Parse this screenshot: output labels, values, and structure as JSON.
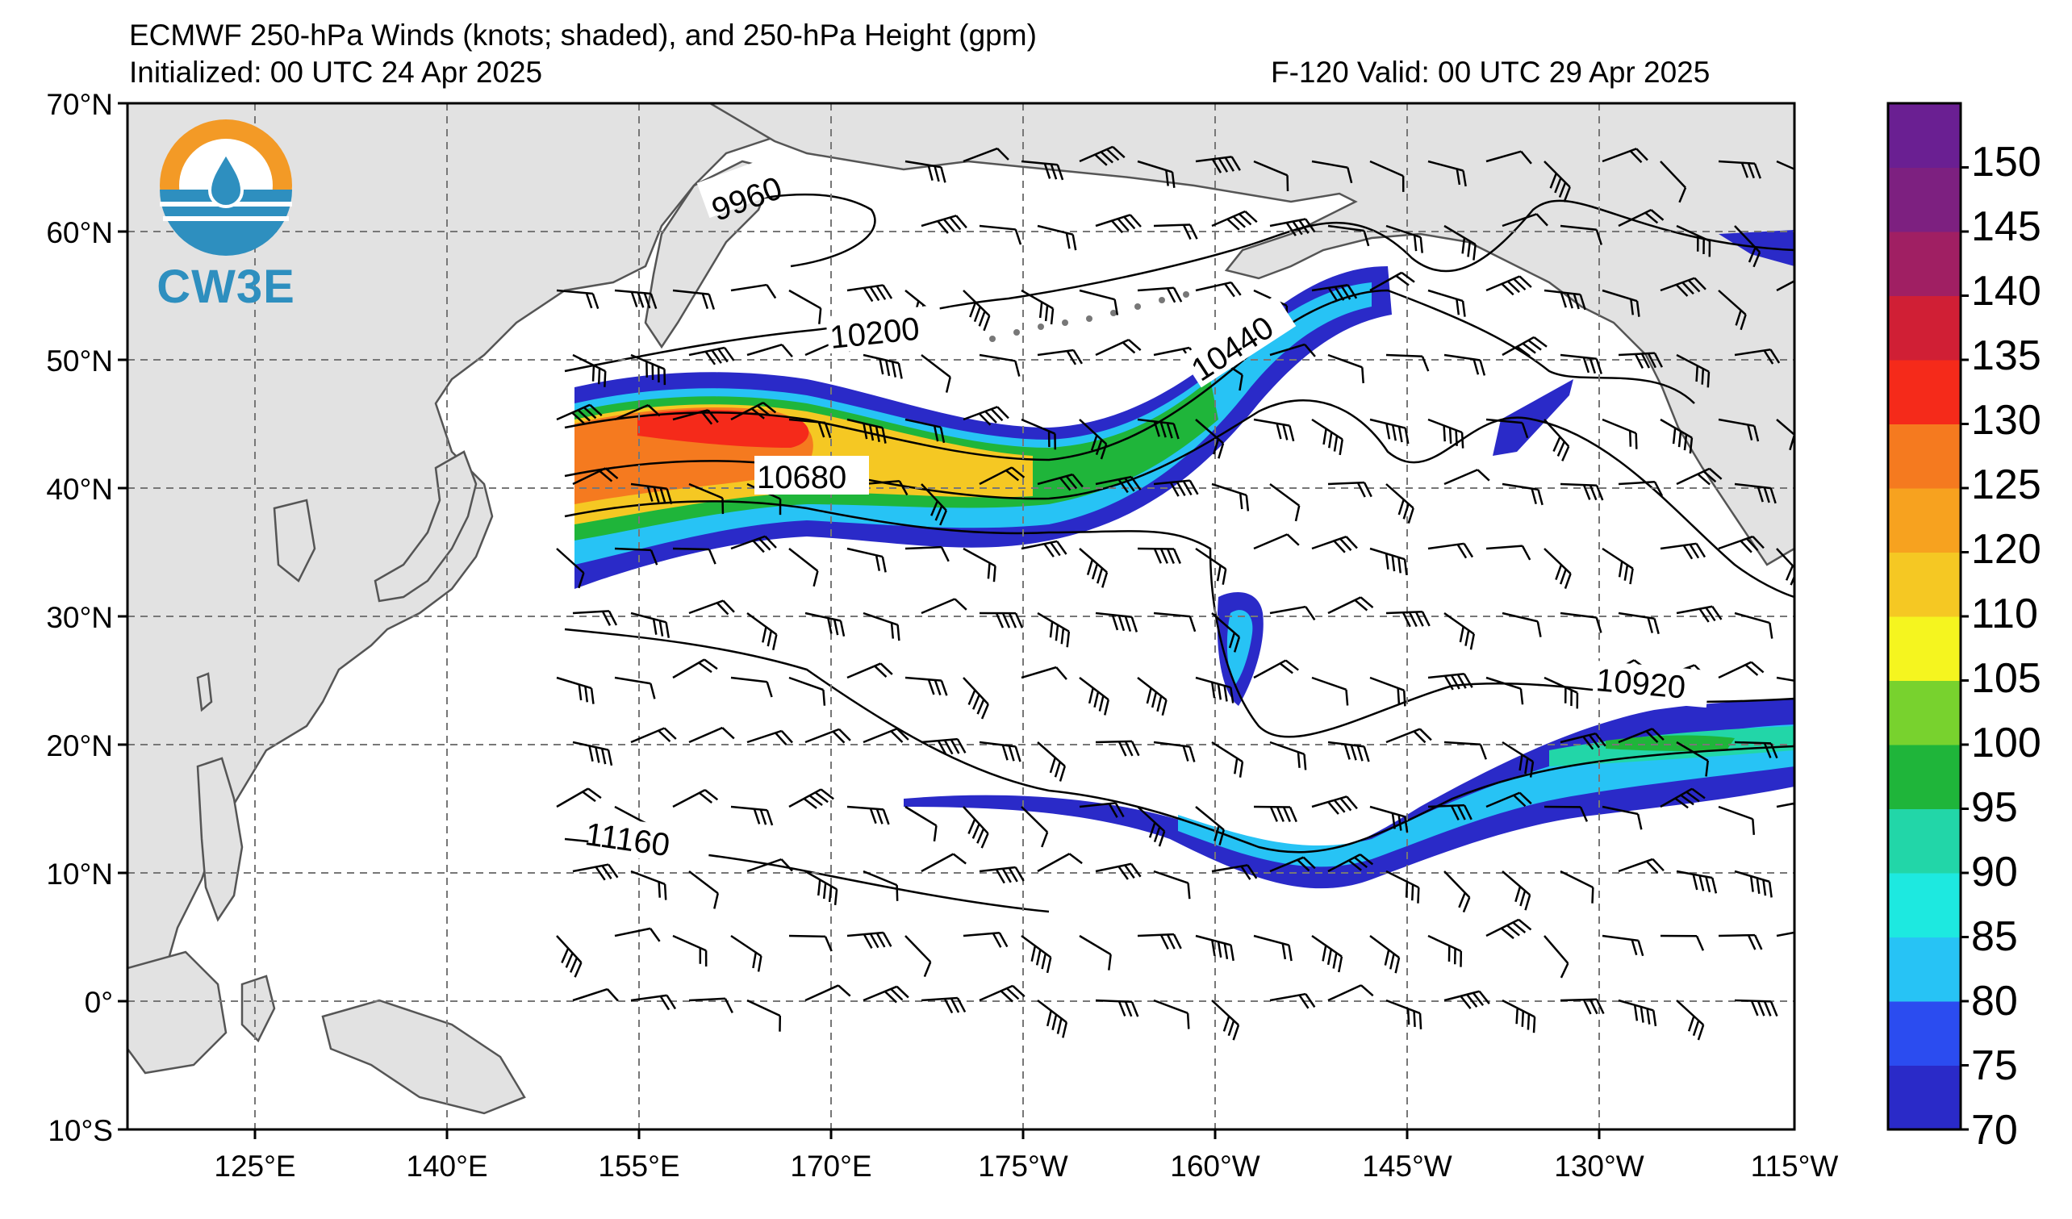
{
  "header": {
    "title": "ECMWF 250-hPa Winds (knots; shaded), and 250-hPa Height (gpm)",
    "initialized": "Initialized: 00 UTC 24 Apr 2025",
    "valid": "F-120  Valid: 00 UTC 29 Apr 2025"
  },
  "logo": {
    "text": "CW3E",
    "icon": "water-drop-icon",
    "colors": {
      "orange": "#f39a26",
      "blue": "#2e8fbf"
    }
  },
  "axes": {
    "lat_labels": [
      "70°N",
      "60°N",
      "50°N",
      "40°N",
      "30°N",
      "20°N",
      "10°N",
      "0°",
      "10°S"
    ],
    "lon_labels": [
      "125°E",
      "140°E",
      "155°E",
      "170°E",
      "175°W",
      "160°W",
      "145°W",
      "130°W",
      "115°W"
    ]
  },
  "colorbar": {
    "ticks": [
      "70",
      "75",
      "80",
      "85",
      "90",
      "95",
      "100",
      "105",
      "110",
      "120",
      "125",
      "130",
      "135",
      "140",
      "145",
      "150"
    ],
    "colors": [
      "#2a2ac8",
      "#2b4cf0",
      "#27c3f5",
      "#1de9e0",
      "#22d6a8",
      "#1fb53a",
      "#78d22e",
      "#f5f51f",
      "#f5c823",
      "#f7a21f",
      "#f57a1f",
      "#f52a1a",
      "#d01f35",
      "#a01f63",
      "#7d2080",
      "#6a1f92"
    ]
  },
  "contour_labels": [
    "9960",
    "10200",
    "10440",
    "10680",
    "10920",
    "11160"
  ],
  "land_color": "#e2e2e2"
}
